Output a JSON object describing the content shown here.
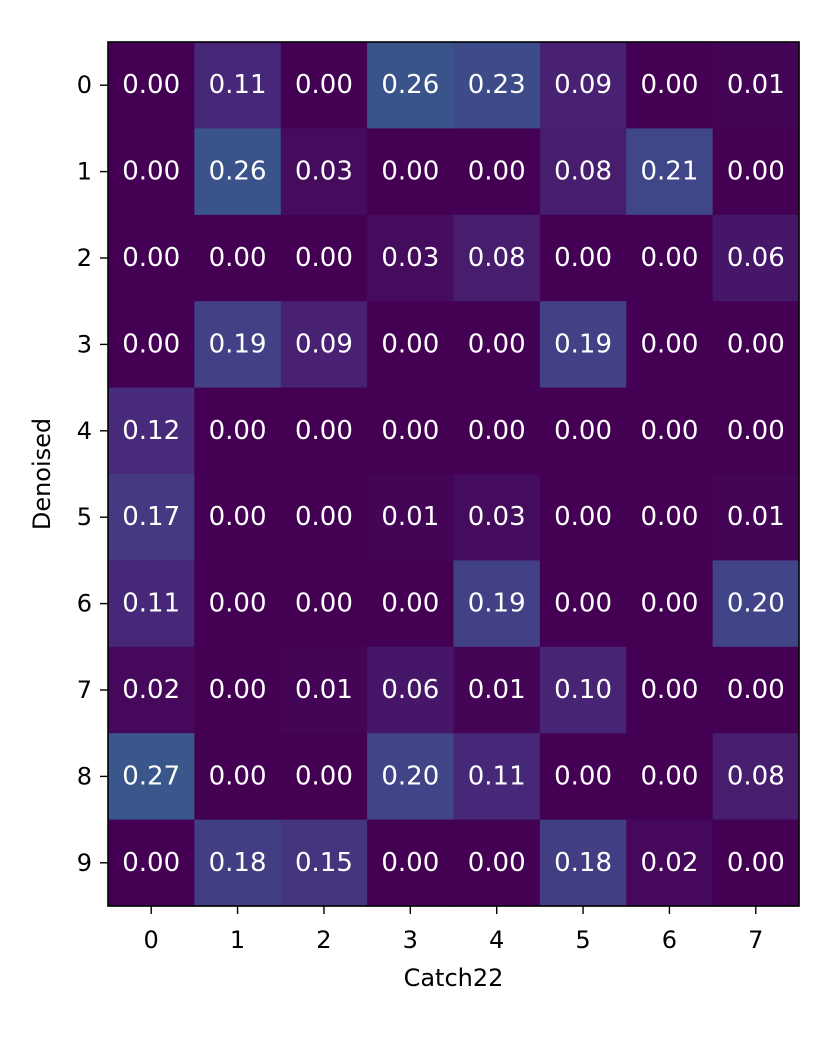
{
  "chart_data": {
    "type": "heatmap",
    "title": "",
    "xlabel": "Catch22",
    "ylabel": "Denoised",
    "x_categories": [
      "0",
      "1",
      "2",
      "3",
      "4",
      "5",
      "6",
      "7"
    ],
    "y_categories": [
      "0",
      "1",
      "2",
      "3",
      "4",
      "5",
      "6",
      "7",
      "8",
      "9"
    ],
    "value_range": [
      0,
      1
    ],
    "colormap": "viridis",
    "grid": false,
    "values": [
      [
        0.0,
        0.11,
        0.0,
        0.26,
        0.23,
        0.09,
        0.0,
        0.01
      ],
      [
        0.0,
        0.26,
        0.03,
        0.0,
        0.0,
        0.08,
        0.21,
        0.0
      ],
      [
        0.0,
        0.0,
        0.0,
        0.03,
        0.08,
        0.0,
        0.0,
        0.06
      ],
      [
        0.0,
        0.19,
        0.09,
        0.0,
        0.0,
        0.19,
        0.0,
        0.0
      ],
      [
        0.12,
        0.0,
        0.0,
        0.0,
        0.0,
        0.0,
        0.0,
        0.0
      ],
      [
        0.17,
        0.0,
        0.0,
        0.01,
        0.03,
        0.0,
        0.0,
        0.01
      ],
      [
        0.11,
        0.0,
        0.0,
        0.0,
        0.19,
        0.0,
        0.0,
        0.2
      ],
      [
        0.02,
        0.0,
        0.01,
        0.06,
        0.01,
        0.1,
        0.0,
        0.0
      ],
      [
        0.27,
        0.0,
        0.0,
        0.2,
        0.11,
        0.0,
        0.0,
        0.08
      ],
      [
        0.0,
        0.18,
        0.15,
        0.0,
        0.0,
        0.18,
        0.02,
        0.0
      ]
    ],
    "labels": [
      [
        "0.00",
        "0.11",
        "0.00",
        "0.26",
        "0.23",
        "0.09",
        "0.00",
        "0.01"
      ],
      [
        "0.00",
        "0.26",
        "0.03",
        "0.00",
        "0.00",
        "0.08",
        "0.21",
        "0.00"
      ],
      [
        "0.00",
        "0.00",
        "0.00",
        "0.03",
        "0.08",
        "0.00",
        "0.00",
        "0.06"
      ],
      [
        "0.00",
        "0.19",
        "0.09",
        "0.00",
        "0.00",
        "0.19",
        "0.00",
        "0.00"
      ],
      [
        "0.12",
        "0.00",
        "0.00",
        "0.00",
        "0.00",
        "0.00",
        "0.00",
        "0.00"
      ],
      [
        "0.17",
        "0.00",
        "0.00",
        "0.01",
        "0.03",
        "0.00",
        "0.00",
        "0.01"
      ],
      [
        "0.11",
        "0.00",
        "0.00",
        "0.00",
        "0.19",
        "0.00",
        "0.00",
        "0.20"
      ],
      [
        "0.02",
        "0.00",
        "0.01",
        "0.06",
        "0.01",
        "0.10",
        "0.00",
        "0.00"
      ],
      [
        "0.27",
        "0.00",
        "0.00",
        "0.20",
        "0.11",
        "0.00",
        "0.00",
        "0.08"
      ],
      [
        "0.00",
        "0.18",
        "0.15",
        "0.00",
        "0.00",
        "0.18",
        "0.02",
        "0.00"
      ]
    ]
  }
}
